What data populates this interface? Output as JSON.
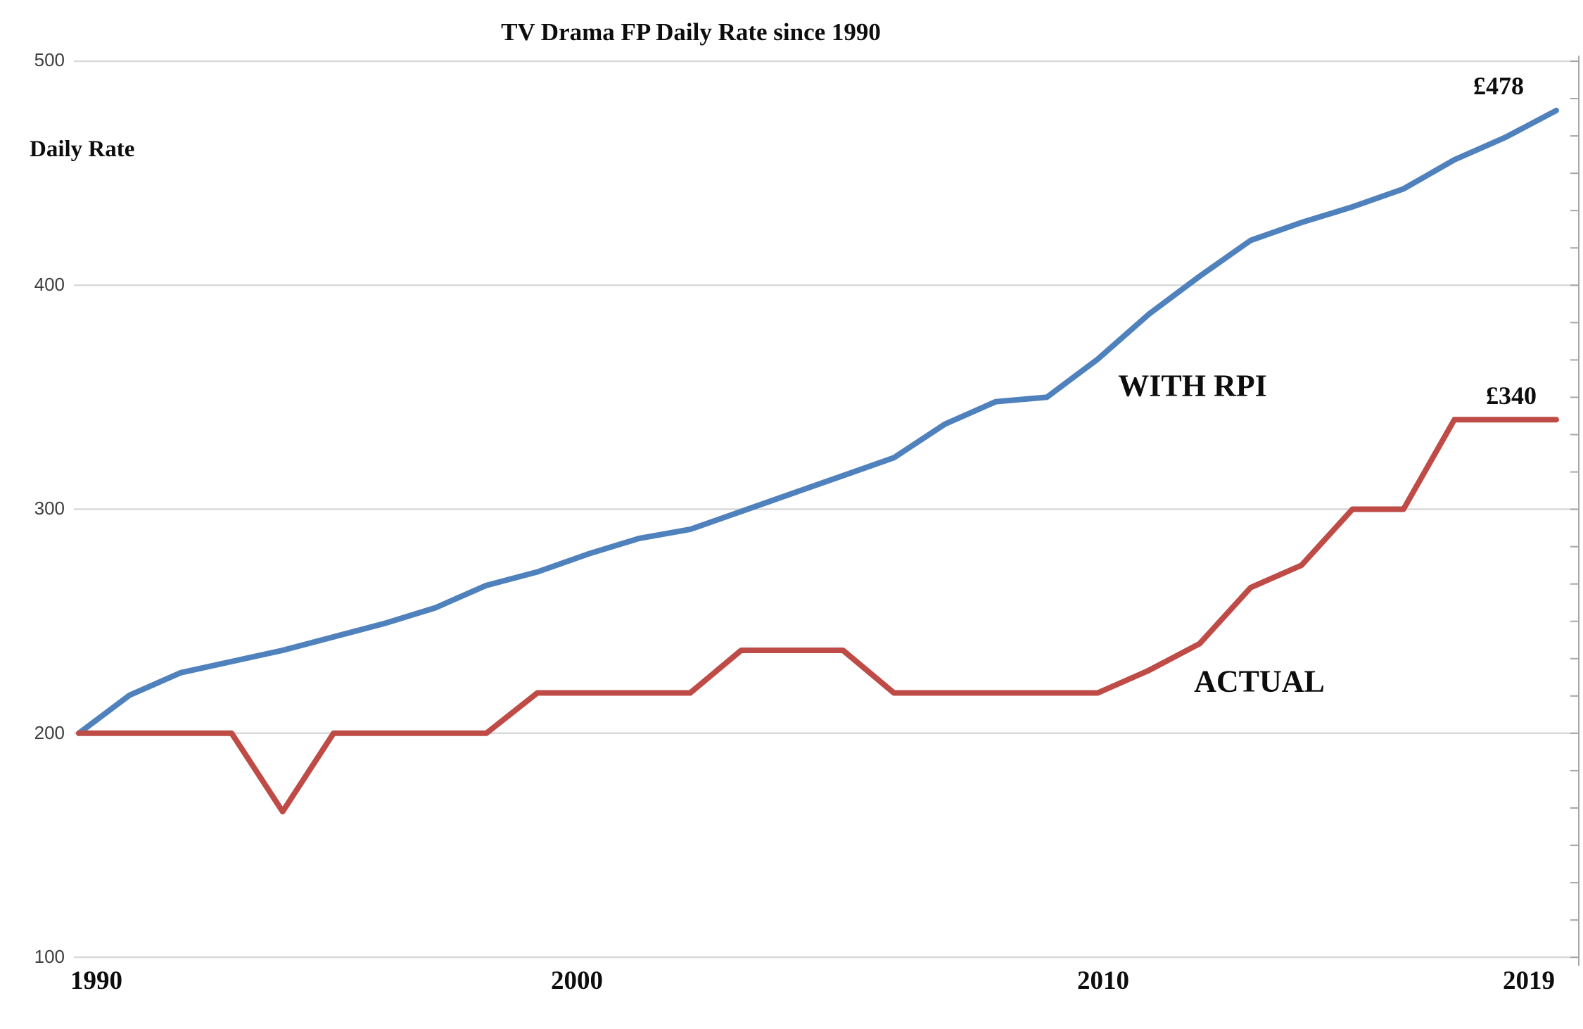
{
  "title": "TV Drama FP Daily Rate since 1990",
  "y_axis": {
    "label": "Daily Rate",
    "tick_labels": [
      "500",
      "400",
      "300",
      "200",
      "100"
    ]
  },
  "x_axis": {
    "tick_labels": [
      "1990",
      "2000",
      "2010",
      "2019"
    ]
  },
  "annotations": {
    "rpi_series_label": "WITH RPI",
    "actual_series_label": "ACTUAL",
    "rpi_end_value_label": "£478",
    "actual_end_value_label": "£340"
  },
  "colors": {
    "rpi_line": "#4f81bd",
    "actual_line": "#bf4b47",
    "gridline": "#d9d9d9",
    "right_axis": "#a6a6a6",
    "tick_text": "#3f3f3f",
    "text": "#0d0d0d",
    "background": "#ffffff"
  },
  "chart_data": {
    "type": "line",
    "title": "TV Drama FP Daily Rate since 1990",
    "xlabel": "",
    "ylabel": "Daily Rate",
    "x": [
      1990,
      1991,
      1992,
      1993,
      1994,
      1995,
      1996,
      1997,
      1998,
      1999,
      2000,
      2001,
      2002,
      2003,
      2004,
      2005,
      2006,
      2007,
      2008,
      2009,
      2010,
      2011,
      2012,
      2013,
      2014,
      2015,
      2016,
      2017,
      2018,
      2019
    ],
    "series": [
      {
        "name": "WITH RPI",
        "color": "#4f81bd",
        "values": [
          200,
          217,
          227,
          232,
          237,
          243,
          249,
          256,
          266,
          272,
          280,
          287,
          291,
          299,
          307,
          315,
          323,
          338,
          348,
          350,
          367,
          387,
          404,
          420,
          428,
          435,
          443,
          456,
          466,
          478
        ]
      },
      {
        "name": "ACTUAL",
        "color": "#bf4b47",
        "values": [
          200,
          200,
          200,
          200,
          165,
          200,
          200,
          200,
          200,
          218,
          218,
          218,
          218,
          237,
          237,
          237,
          218,
          218,
          218,
          218,
          218,
          228,
          240,
          265,
          275,
          300,
          300,
          340,
          340,
          340
        ]
      }
    ],
    "ylim": [
      100,
      500
    ],
    "yticks": [
      100,
      200,
      300,
      400,
      500
    ],
    "xticks": [
      1990,
      2000,
      2010,
      2019
    ],
    "grid": "horizontal",
    "legend": "inline-annotations",
    "end_labels": {
      "WITH RPI": "£478",
      "ACTUAL": "£340"
    }
  }
}
